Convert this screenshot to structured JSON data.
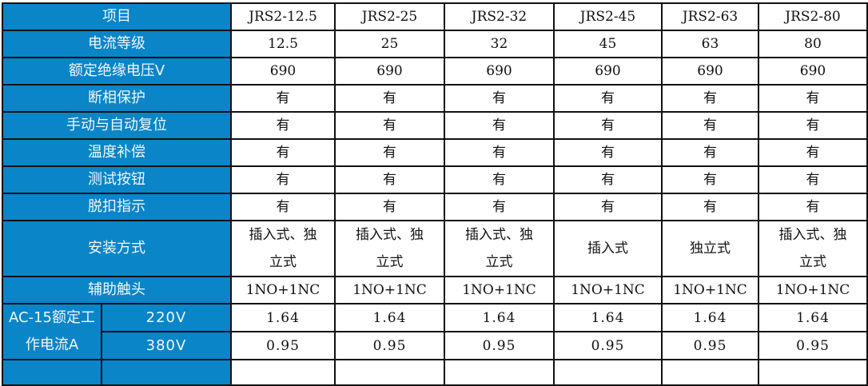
{
  "colors": {
    "header_bg": "#0A85C8",
    "border": "#111111"
  },
  "header": {
    "label": "项目",
    "models": [
      "JRS2-12.5",
      "JRS2-25",
      "JRS2-32",
      "JRS2-45",
      "JRS2-63",
      "JRS2-80"
    ]
  },
  "rows": [
    {
      "label": "电流等级",
      "values": [
        "12.5",
        "25",
        "32",
        "45",
        "63",
        "80"
      ]
    },
    {
      "label": "额定绝缘电压V",
      "values": [
        "690",
        "690",
        "690",
        "690",
        "690",
        "690"
      ]
    },
    {
      "label": "断相保护",
      "values": [
        "有",
        "有",
        "有",
        "有",
        "有",
        "有"
      ]
    },
    {
      "label": "手动与自动复位",
      "values": [
        "有",
        "有",
        "有",
        "有",
        "有",
        "有"
      ]
    },
    {
      "label": "温度补偿",
      "values": [
        "有",
        "有",
        "有",
        "有",
        "有",
        "有"
      ]
    },
    {
      "label": "测试按钮",
      "values": [
        "有",
        "有",
        "有",
        "有",
        "有",
        "有"
      ]
    },
    {
      "label": "脱扣指示",
      "values": [
        "有",
        "有",
        "有",
        "有",
        "有",
        "有"
      ]
    },
    {
      "label": "安装方式",
      "tall": true,
      "values": [
        "插入式、独立式",
        "插入式、独立式",
        "插入式、独立式",
        "插入式",
        "独立式",
        "插入式、独立式"
      ]
    },
    {
      "label": "辅助触头",
      "values": [
        "1NO+1NC",
        "1NO+1NC",
        "1NO+1NC",
        "1NO+1NC",
        "1NO+1NC",
        "1NO+1NC"
      ]
    }
  ],
  "ac15": {
    "label": "AC-15额定工作电流A",
    "sub": [
      {
        "voltage": "220V",
        "values": [
          "1.64",
          "1.64",
          "1.64",
          "1.64",
          "1.64",
          "1.64"
        ]
      },
      {
        "voltage": "380V",
        "values": [
          "0.95",
          "0.95",
          "0.95",
          "0.95",
          "0.95",
          "0.95"
        ]
      }
    ]
  }
}
